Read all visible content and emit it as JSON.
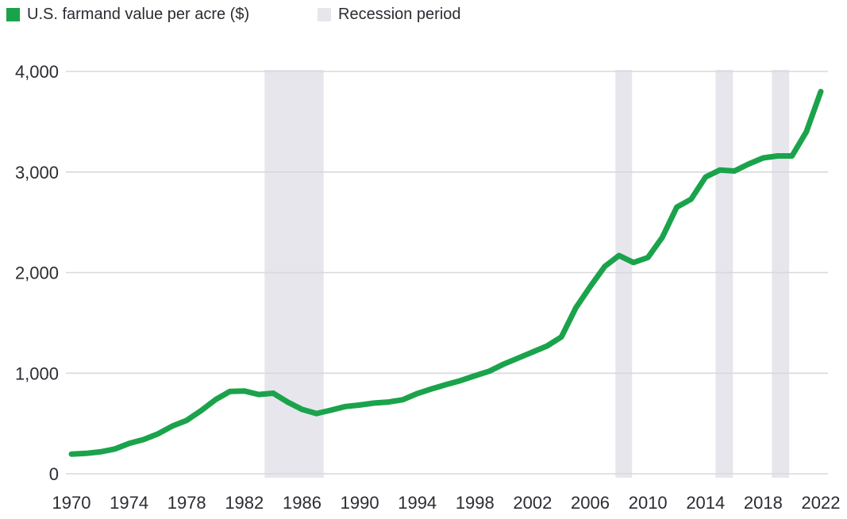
{
  "legend": {
    "series_label": "U.S. farmand value per acre ($)",
    "recession_label": "Recession period"
  },
  "colors": {
    "line": "#1aa34b",
    "recession_band": "#e6e6ec",
    "grid": "#d8d8de",
    "text": "#2b2c33",
    "background": "#ffffff"
  },
  "chart_data": {
    "type": "line",
    "title": "",
    "xlabel": "",
    "ylabel": "",
    "grid": true,
    "legend_position": "top-left",
    "x": [
      1970,
      1971,
      1972,
      1973,
      1974,
      1975,
      1976,
      1977,
      1978,
      1979,
      1980,
      1981,
      1982,
      1983,
      1984,
      1985,
      1986,
      1987,
      1988,
      1989,
      1990,
      1991,
      1992,
      1993,
      1994,
      1995,
      1996,
      1997,
      1998,
      1999,
      2000,
      2001,
      2002,
      2003,
      2004,
      2005,
      2006,
      2007,
      2008,
      2009,
      2010,
      2011,
      2012,
      2013,
      2014,
      2015,
      2016,
      2017,
      2018,
      2019,
      2020,
      2021,
      2022
    ],
    "series": [
      {
        "name": "U.S. farmand value per acre ($)",
        "values": [
          196,
          203,
          218,
          246,
          301,
          340,
          397,
          474,
          531,
          628,
          737,
          819,
          823,
          788,
          801,
          713,
          640,
          599,
          632,
          668,
          683,
          703,
          713,
          736,
          798,
          844,
          887,
          926,
          974,
          1020,
          1090,
          1150,
          1210,
          1270,
          1360,
          1650,
          1860,
          2060,
          2170,
          2100,
          2150,
          2350,
          2650,
          2730,
          2950,
          3020,
          3010,
          3080,
          3140,
          3160,
          3160,
          3400,
          3800
        ]
      }
    ],
    "xlim": [
      1969.6,
      2022.5
    ],
    "ylim": [
      0,
      4000
    ],
    "x_ticks": [
      1970,
      1974,
      1978,
      1982,
      1986,
      1990,
      1994,
      1998,
      2002,
      2006,
      2010,
      2014,
      2018,
      2022
    ],
    "y_ticks": [
      0,
      1000,
      2000,
      3000,
      4000
    ],
    "y_tick_labels": [
      "0",
      "1,000",
      "2,000",
      "3,000",
      "4,000"
    ],
    "recession_periods": [
      {
        "from": 1983.4,
        "to": 1987.5
      },
      {
        "from": 2007.75,
        "to": 2008.9
      },
      {
        "from": 2014.7,
        "to": 2015.9
      },
      {
        "from": 2018.6,
        "to": 2019.8
      }
    ]
  }
}
